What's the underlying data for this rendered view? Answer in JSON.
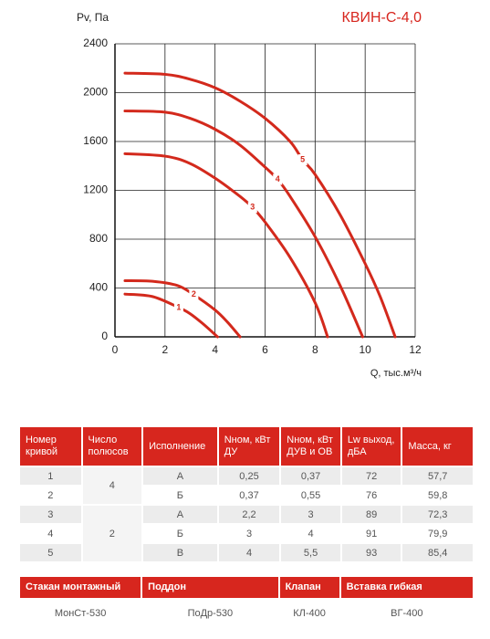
{
  "chart_data": {
    "type": "line",
    "title": "КВИН-С-4,0",
    "y_label": "Pv, Па",
    "x_label": "Q, тыс.м³/ч",
    "xlim": [
      0,
      12
    ],
    "ylim": [
      0,
      2400
    ],
    "xticks": [
      0,
      2,
      4,
      6,
      8,
      10,
      12
    ],
    "yticks": [
      0,
      400,
      800,
      1200,
      1600,
      2000,
      2400
    ],
    "grid": true,
    "series": [
      {
        "name": "1",
        "color": "#d3291c",
        "x": [
          0.4,
          1.5,
          2.55,
          3,
          3.5,
          4.1
        ],
        "values": [
          350,
          330,
          240,
          190,
          110,
          0
        ]
      },
      {
        "name": "2",
        "color": "#d3291c",
        "x": [
          0.4,
          1.5,
          2.5,
          3.15,
          4,
          4.5,
          5
        ],
        "values": [
          460,
          455,
          420,
          345,
          220,
          120,
          0
        ]
      },
      {
        "name": "3",
        "color": "#d3291c",
        "x": [
          0.4,
          2,
          3,
          4,
          5,
          5.5,
          6,
          7,
          8,
          8.5
        ],
        "values": [
          1500,
          1480,
          1420,
          1300,
          1150,
          1060,
          940,
          650,
          280,
          0
        ]
      },
      {
        "name": "4",
        "color": "#d3291c",
        "x": [
          0.4,
          2,
          3,
          4,
          5,
          6,
          6.5,
          7,
          8,
          9,
          9.9
        ],
        "values": [
          1850,
          1840,
          1790,
          1700,
          1570,
          1390,
          1290,
          1150,
          820,
          420,
          0
        ]
      },
      {
        "name": "5",
        "color": "#d3291c",
        "x": [
          0.4,
          2,
          3,
          4,
          5,
          6,
          7,
          7.5,
          8,
          9,
          10,
          10.6,
          11.2
        ],
        "values": [
          2160,
          2150,
          2110,
          2040,
          1930,
          1790,
          1600,
          1450,
          1330,
          1000,
          600,
          330,
          0
        ]
      }
    ]
  },
  "table": {
    "header": [
      "Номер кривой",
      "Число полюсов",
      "Исполнение",
      "Nном, кВт ДУ",
      "Nном, кВт ДУВ и ОВ",
      "Lw выход, дБА",
      "Масса, кг"
    ],
    "rows": [
      [
        "1",
        "4",
        "А",
        "0,25",
        "0,37",
        "72",
        "57,7"
      ],
      [
        "2",
        "Б",
        "0,37",
        "0,55",
        "76",
        "59,8"
      ],
      [
        "3",
        "2",
        "А",
        "2,2",
        "3",
        "89",
        "72,3"
      ],
      [
        "4",
        "Б",
        "3",
        "4",
        "91",
        "79,9"
      ],
      [
        "5",
        "В",
        "4",
        "5,5",
        "93",
        "85,4"
      ]
    ]
  },
  "accessories": {
    "header": [
      "Стакан монтажный",
      "Поддон",
      "Клапан",
      "Вставка гибкая"
    ],
    "values": [
      "МонСт-530",
      "ПоДр-530",
      "КЛ-400",
      "ВГ-400"
    ]
  }
}
